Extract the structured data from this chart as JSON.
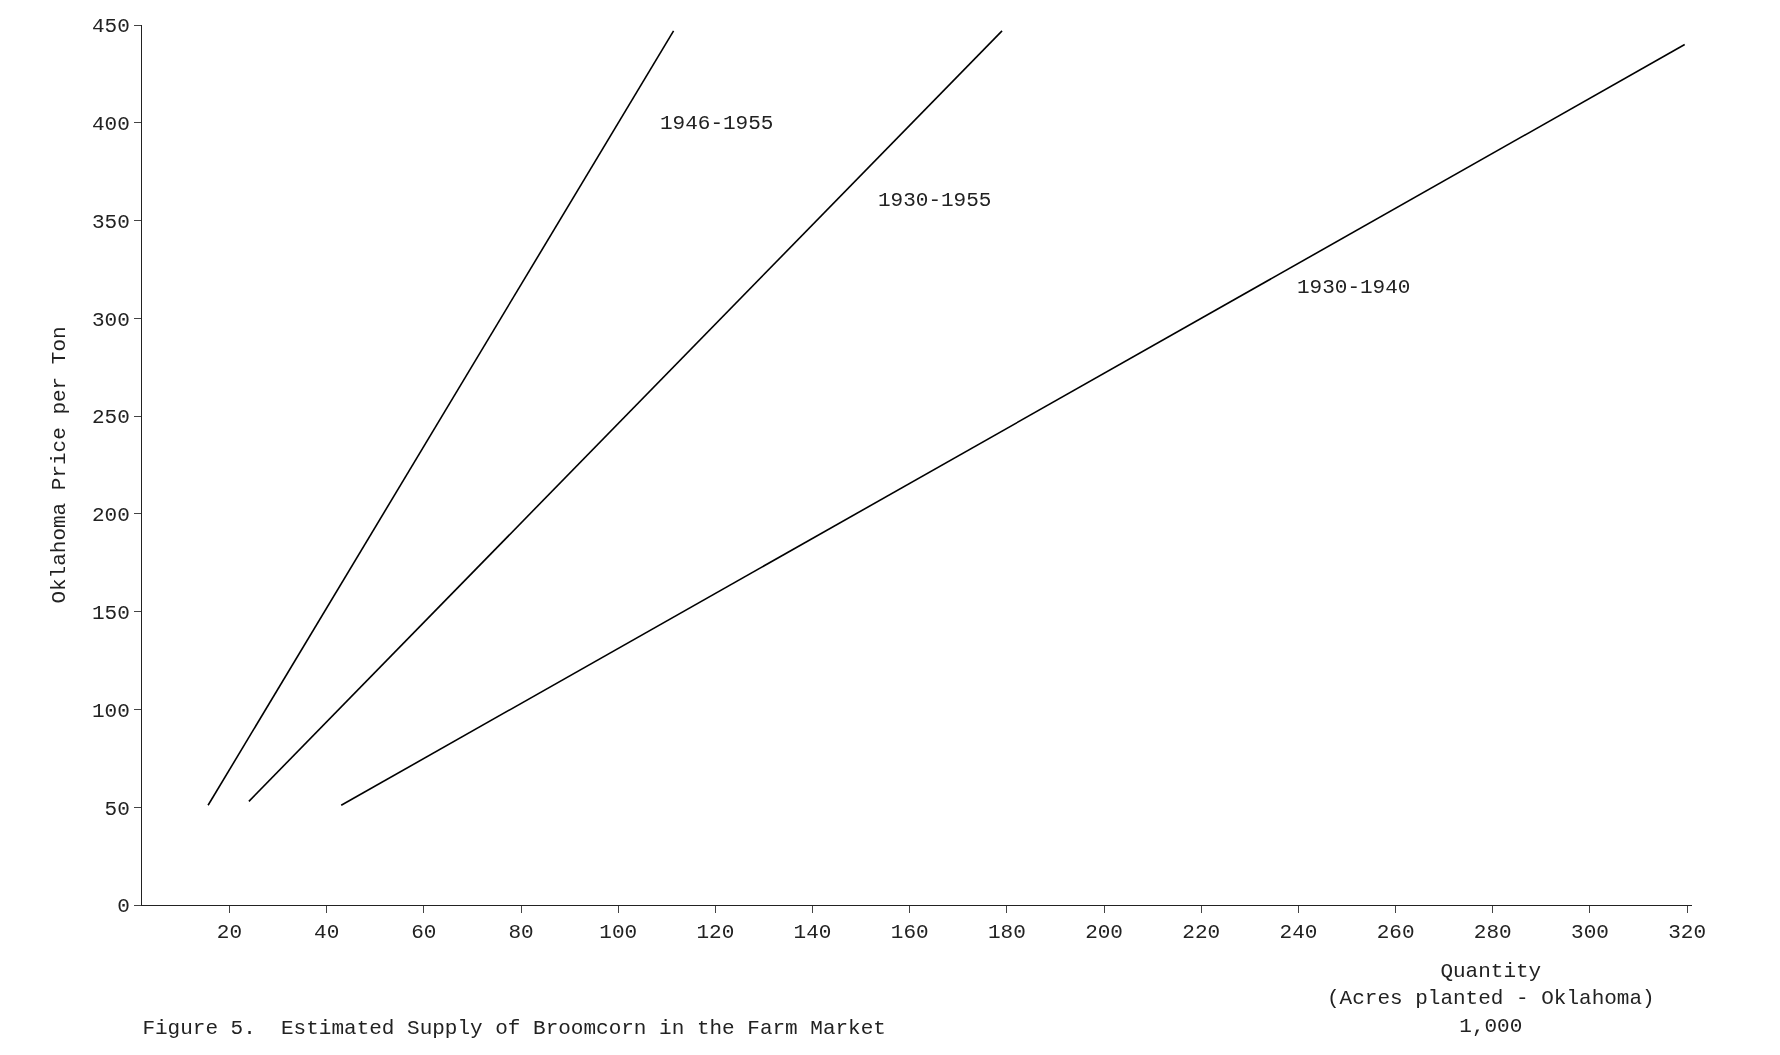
{
  "chart_data": {
    "type": "line",
    "title": "Figure 5.  Estimated Supply of Broomcorn in the Farm Market",
    "xlabel": "Quantity\n(Acres planted - Oklahoma)\n1,000",
    "ylabel": "Oklahoma Price per Ton",
    "series": [
      {
        "name": "1946-1955",
        "color": "#000000",
        "x": [
          15.6,
          111.4
        ],
        "values": [
          51,
          447
        ]
      },
      {
        "name": "1930-1955",
        "color": "#000000",
        "x": [
          24,
          179
        ],
        "values": [
          53,
          447
        ]
      },
      {
        "name": "1930-1940",
        "color": "#000000",
        "x": [
          43,
          319.5
        ],
        "values": [
          51,
          440
        ]
      }
    ],
    "xlim": [
      2,
      321
    ],
    "xticks": [
      20,
      40,
      60,
      80,
      100,
      120,
      140,
      160,
      180,
      200,
      220,
      240,
      260,
      280,
      300,
      320
    ],
    "ylim": [
      0,
      450
    ],
    "yticks": [
      0,
      50,
      100,
      150,
      200,
      250,
      300,
      350,
      400,
      450
    ],
    "grid": false,
    "legend": false,
    "marker": "none",
    "line_style": "solid"
  }
}
